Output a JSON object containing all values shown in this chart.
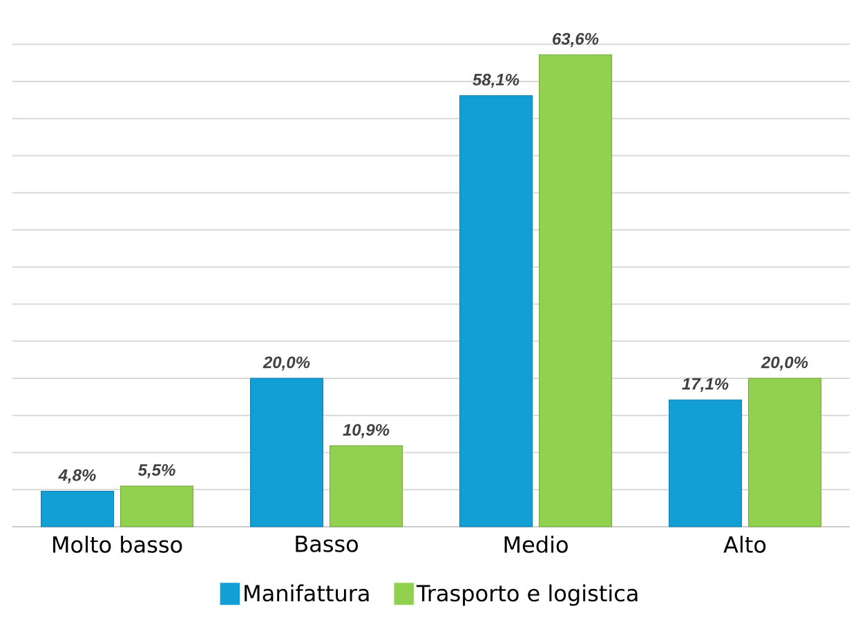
{
  "chart_data": {
    "type": "bar",
    "categories": [
      "Molto basso",
      "Basso",
      "Medio",
      "Alto"
    ],
    "series": [
      {
        "name": "Manifattura",
        "color": "#119fd6",
        "values": [
          4.8,
          20.0,
          58.1,
          17.1
        ],
        "value_labels": [
          "4,8%",
          "20,0%",
          "58,1%",
          "17,1%"
        ]
      },
      {
        "name": "Trasporto e logistica",
        "color": "#92d050",
        "values": [
          5.5,
          10.9,
          63.6,
          20.0
        ],
        "value_labels": [
          "5,5%",
          "10,9%",
          "63,6%",
          "20,0%"
        ]
      }
    ],
    "grid": "y",
    "legend": "bottom"
  }
}
